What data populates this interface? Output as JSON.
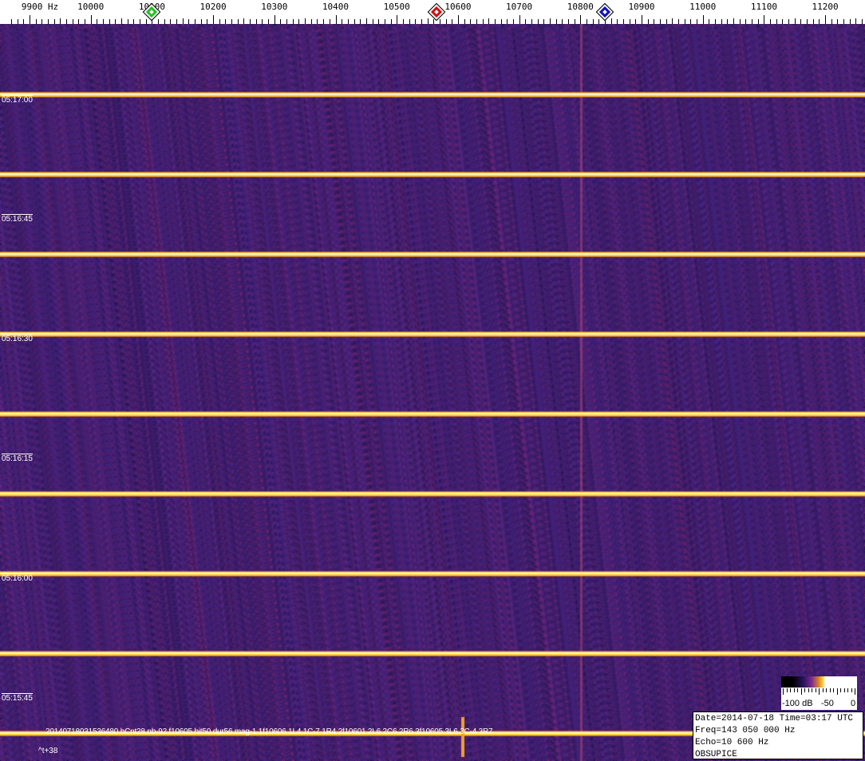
{
  "axis": {
    "unit_label": "9900 Hz",
    "labels": [
      "10000",
      "10100",
      "10200",
      "10300",
      "10400",
      "10500",
      "10600",
      "10700",
      "10800",
      "10900",
      "11000",
      "11100",
      "11200"
    ],
    "markers": [
      {
        "name": "green",
        "color": "#22c020",
        "freq": 10100
      },
      {
        "name": "red",
        "color": "#d01010",
        "freq": 10565
      },
      {
        "name": "blue",
        "color": "#1010c0",
        "freq": 10840
      }
    ]
  },
  "time_labels": [
    "05:17:00",
    "05:16:45",
    "05:16:30",
    "05:16:15",
    "05:16:00",
    "05:15:45"
  ],
  "meteor_text": "20140718031536480 hCnt28 nb-92 f10605 hit50 dur56 mag-1 1f10606 1L4 1C-7 1R4 2f10601 2L6 2C6 2R6 3f10605 3L6 3C-4 3R7",
  "offset_text": "^t+38",
  "color_scale": {
    "min_label": "-100 dB",
    "mid_label": "-50",
    "max_label": "0"
  },
  "info": {
    "line1": "Date=2014-07-18 Time=03:17 UTC",
    "line2": "Freq=143 050 000 Hz",
    "line3": "Echo=10 600 Hz",
    "line4": "OBSUPICE"
  },
  "colors": {
    "background": "#2e1a6e",
    "signal": "#ffe060"
  }
}
